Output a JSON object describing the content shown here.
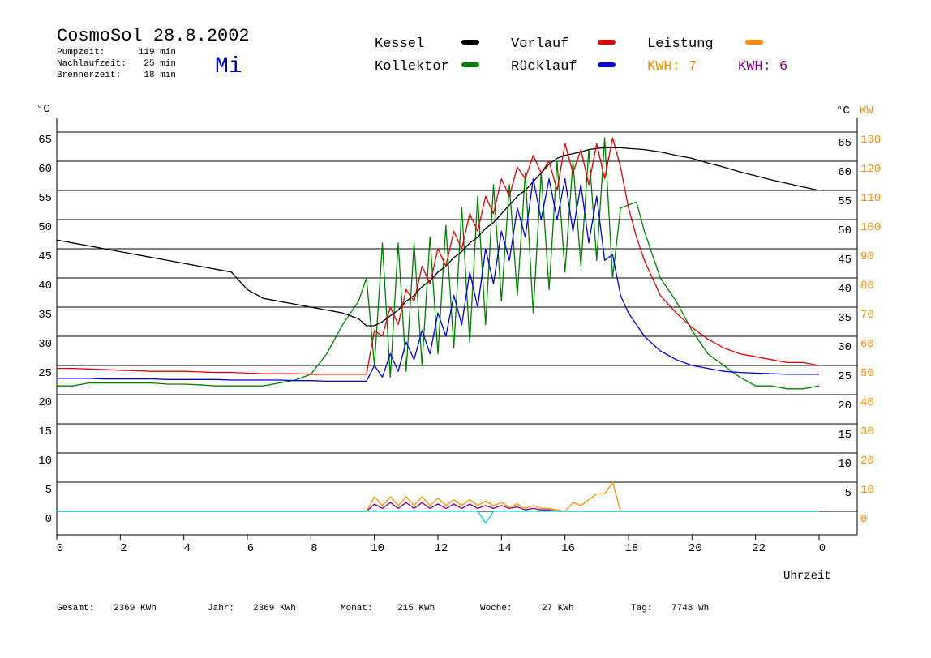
{
  "chart_data": {
    "type": "line",
    "title": "CosmoSol 28.8.2002",
    "day": "Mi",
    "run_times": [
      {
        "label": "Pumpzeit:",
        "value": "119 min"
      },
      {
        "label": "Nachlaufzeit:",
        "value": "25 min"
      },
      {
        "label": "Brennerzeit:",
        "value": "18 min"
      }
    ],
    "energy_totals": [
      {
        "label": "Gesamt:",
        "value": "2369 KWh"
      },
      {
        "label": "Jahr:",
        "value": "2369 KWh"
      },
      {
        "label": "Monat:",
        "value": "215 KWh"
      },
      {
        "label": "Woche:",
        "value": "27 KWh"
      },
      {
        "label": "Tag:",
        "value": "7748 Wh"
      }
    ],
    "kwh_labels": [
      {
        "text": "KWH: 7",
        "color": "#ff8c00"
      },
      {
        "text": "KWH: 6",
        "color": "#800080"
      }
    ],
    "y_label": "°C",
    "y2_label": "°C",
    "y2_unit": "KW",
    "x_label": "Uhrzeit",
    "xlim": [
      0,
      25.2
    ],
    "xticks": [
      0,
      2,
      4,
      6,
      8,
      10,
      12,
      14,
      16,
      18,
      20,
      22,
      {
        "value": 24,
        "label": "0"
      }
    ],
    "ylim": [
      -4,
      68
    ],
    "yticks": [
      0,
      5,
      10,
      15,
      20,
      25,
      30,
      35,
      40,
      45,
      50,
      55,
      60,
      65
    ],
    "yticks_right": [
      5,
      10,
      15,
      20,
      25,
      30,
      35,
      40,
      45,
      50,
      55,
      60,
      65
    ],
    "y2lim": [
      -8,
      136
    ],
    "y2ticks": [
      0,
      10,
      20,
      30,
      40,
      50,
      60,
      70,
      80,
      90,
      100,
      110,
      120,
      130
    ],
    "grid": true,
    "x": [
      0,
      0.5,
      1,
      1.5,
      2,
      2.5,
      3,
      3.5,
      4,
      4.5,
      5,
      5.5,
      6,
      6.5,
      7,
      7.5,
      8,
      8.5,
      9,
      9.5,
      9.75,
      10,
      10.25,
      10.5,
      10.75,
      11,
      11.25,
      11.5,
      11.75,
      12,
      12.25,
      12.5,
      12.75,
      13,
      13.25,
      13.5,
      13.75,
      14,
      14.25,
      14.5,
      14.75,
      15,
      15.25,
      15.5,
      15.75,
      16,
      16.25,
      16.5,
      16.75,
      17,
      17.25,
      17.5,
      17.75,
      18,
      18.25,
      18.5,
      19,
      19.5,
      20,
      20.5,
      21,
      21.5,
      22,
      22.5,
      23,
      23.5,
      24
    ],
    "series": [
      {
        "name": "Kessel",
        "color": "#000000",
        "values": [
          46.5,
          46,
          45.5,
          45,
          44.5,
          44,
          43.5,
          43,
          42.5,
          42,
          41.5,
          41,
          38,
          36.5,
          36,
          35.5,
          35,
          34.5,
          34,
          33,
          31.8,
          31.8,
          32.5,
          33.5,
          34.5,
          36,
          37,
          38.5,
          39.5,
          41,
          42,
          43.5,
          44.5,
          46,
          47,
          48.5,
          49.5,
          51,
          52.5,
          54,
          55,
          56.5,
          58,
          59.5,
          60.5,
          61,
          61.3,
          61.6,
          62,
          62.2,
          62.3,
          62.3,
          62.3,
          62.2,
          62.1,
          62,
          61.6,
          61,
          60.5,
          59.7,
          59,
          58.2,
          57.5,
          56.8,
          56.2,
          55.6,
          55
        ]
      },
      {
        "name": "Kollektor",
        "color": "#008000",
        "values": [
          21.5,
          21.5,
          22,
          22,
          22,
          22,
          22,
          21.8,
          21.8,
          21.7,
          21.5,
          21.5,
          21.5,
          21.5,
          22,
          22.5,
          23.5,
          27,
          32,
          36,
          40,
          25,
          46,
          23,
          46,
          24,
          46,
          25,
          47,
          27,
          49,
          28,
          52,
          29,
          54,
          32,
          56,
          36,
          56,
          37,
          58,
          34,
          58,
          38,
          60,
          41,
          60,
          42,
          62,
          43,
          64,
          40,
          52,
          52.5,
          53,
          48,
          40,
          36,
          31,
          27,
          25,
          23,
          21.5,
          21.5,
          21,
          21,
          21.5
        ]
      },
      {
        "name": "Vorlauf",
        "color": "#e00000",
        "values": [
          24.5,
          24.5,
          24.4,
          24.3,
          24.2,
          24.1,
          24,
          24,
          24,
          23.9,
          23.8,
          23.8,
          23.7,
          23.6,
          23.6,
          23.6,
          23.5,
          23.5,
          23.5,
          23.5,
          23.5,
          31,
          30,
          35,
          32,
          38,
          36,
          42,
          39,
          45,
          42,
          48,
          45,
          51,
          48,
          54,
          51,
          57,
          54,
          59,
          57,
          61,
          58,
          60,
          55,
          63,
          58,
          62,
          56,
          63,
          57,
          64,
          59,
          52,
          47,
          43,
          37,
          34,
          31.5,
          29.5,
          28,
          27,
          26.5,
          26,
          25.5,
          25.5,
          25
        ]
      },
      {
        "name": "Rücklauf",
        "color": "#0000e0",
        "values": [
          22.8,
          22.8,
          22.8,
          22.7,
          22.7,
          22.7,
          22.7,
          22.6,
          22.6,
          22.6,
          22.6,
          22.5,
          22.5,
          22.5,
          22.5,
          22.4,
          22.4,
          22.3,
          22.3,
          22.3,
          22.3,
          25,
          23,
          27,
          24,
          29,
          26,
          31,
          27,
          34,
          30,
          37,
          32,
          41,
          35,
          45,
          39,
          48,
          43,
          52,
          47,
          57,
          50,
          57,
          50,
          57,
          48,
          56,
          46,
          54,
          43,
          44,
          37,
          34,
          32,
          30,
          27.5,
          26,
          25,
          24.5,
          24,
          23.8,
          23.7,
          23.6,
          23.5,
          23.5,
          23.5
        ]
      },
      {
        "name": "Leistung",
        "color": "#ff8c00",
        "axis": "y2",
        "values": [
          0,
          0,
          0,
          0,
          0,
          0,
          0,
          0,
          0,
          0,
          0,
          0,
          0,
          0,
          0,
          0,
          0,
          0,
          0,
          0,
          0,
          5,
          2,
          5,
          2,
          5,
          2,
          5,
          2,
          4.5,
          2,
          4,
          2,
          4,
          2,
          3.5,
          2,
          3,
          1.5,
          2.5,
          1,
          2,
          1,
          1,
          0.5,
          0,
          3,
          2,
          4,
          6,
          6,
          10,
          0,
          0,
          0,
          0,
          0,
          0,
          0,
          0,
          0,
          0,
          0,
          0,
          0,
          0,
          0
        ]
      },
      {
        "color": "#800080",
        "axis": "y2",
        "values": [
          0,
          0,
          0,
          0,
          0,
          0,
          0,
          0,
          0,
          0,
          0,
          0,
          0,
          0,
          0,
          0,
          0,
          0,
          0,
          0,
          0,
          2.5,
          1,
          3,
          1,
          3,
          1,
          3,
          1,
          2.5,
          1,
          2.5,
          1,
          2.5,
          1,
          2,
          1,
          2,
          1,
          1.5,
          0.5,
          1,
          0.5,
          0.5,
          0,
          0,
          0,
          0,
          0,
          0,
          0,
          0,
          0,
          0,
          0,
          0,
          0,
          0,
          0,
          0,
          0,
          0,
          0,
          0,
          0,
          0,
          0
        ]
      },
      {
        "color": "#00d8e0",
        "values": [
          0,
          0,
          0,
          0,
          0,
          0,
          0,
          0,
          0,
          0,
          0,
          0,
          0,
          0,
          0,
          0,
          0,
          0,
          0,
          0,
          0,
          0,
          0,
          0,
          0,
          0,
          0,
          0,
          0,
          0,
          0,
          0,
          0,
          0,
          0,
          -2,
          0,
          0,
          0,
          0,
          0,
          0,
          0,
          0,
          0,
          0,
          0,
          0,
          0,
          0,
          0,
          0,
          0,
          0,
          0,
          0,
          0,
          0,
          0,
          0,
          0,
          0,
          0,
          0,
          0,
          0,
          0
        ]
      }
    ]
  }
}
